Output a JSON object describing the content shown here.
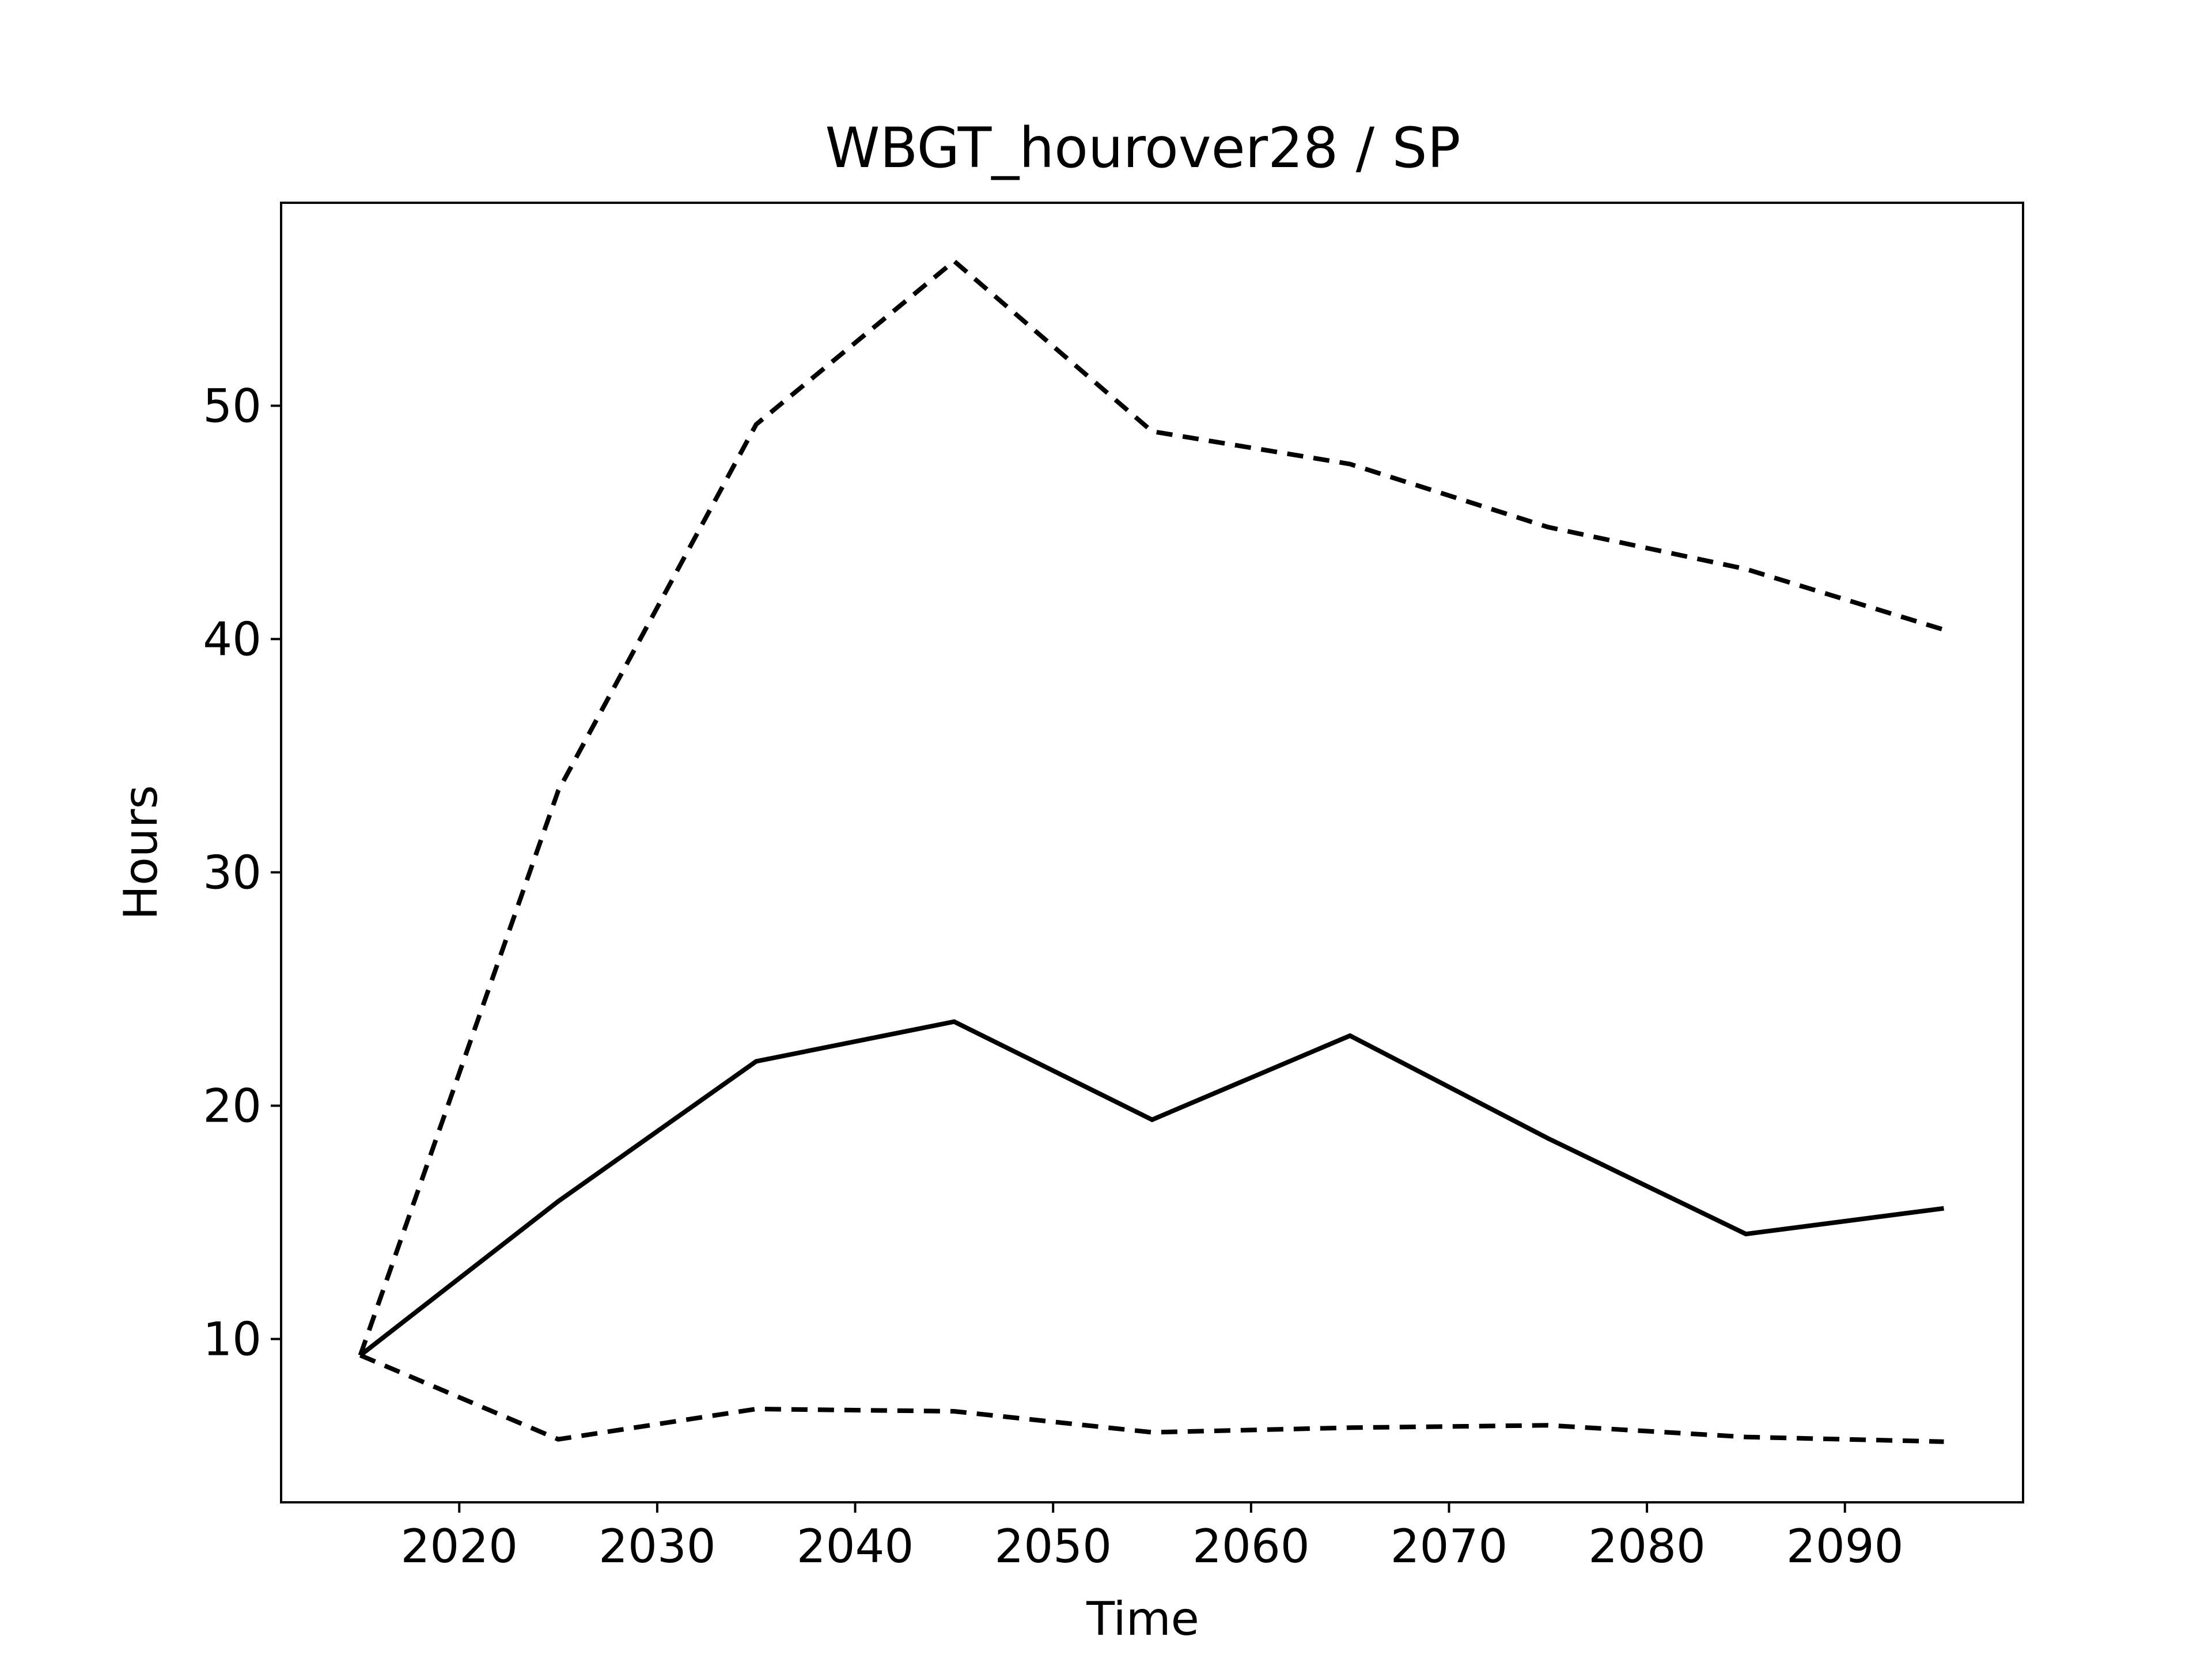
{
  "chart_data": {
    "type": "line",
    "title": "WBGT_hourover28 / SP",
    "xlabel": "Time",
    "ylabel": "Hours",
    "xlim": [
      2011,
      2099
    ],
    "ylim": [
      3.0,
      58.7
    ],
    "xticks": [
      2020,
      2030,
      2040,
      2050,
      2060,
      2070,
      2080,
      2090
    ],
    "yticks": [
      10,
      20,
      30,
      40,
      50
    ],
    "grid": false,
    "x": [
      2015,
      2025,
      2035,
      2045,
      2055,
      2065,
      2075,
      2085,
      2095
    ],
    "series": [
      {
        "style": "solid",
        "color": "#000000",
        "values": [
          9.3,
          15.9,
          21.9,
          23.6,
          19.4,
          23.0,
          18.6,
          14.5,
          15.6
        ]
      },
      {
        "style": "dashed",
        "color": "#000000",
        "values": [
          9.3,
          33.5,
          49.2,
          56.2,
          48.9,
          47.5,
          44.8,
          43.0,
          40.4
        ]
      },
      {
        "style": "dashed",
        "color": "#000000",
        "values": [
          9.3,
          5.7,
          7.0,
          6.9,
          6.0,
          6.2,
          6.3,
          5.8,
          5.6
        ]
      }
    ]
  }
}
